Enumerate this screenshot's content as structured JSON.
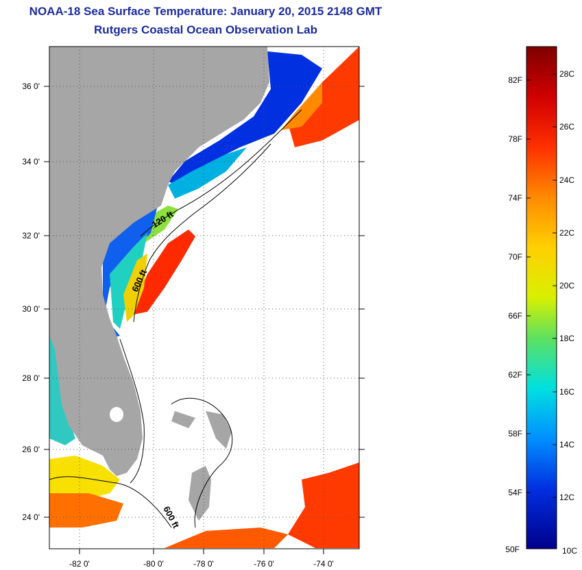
{
  "header": {
    "title": "NOAA-18 Sea Surface Temperature:  January 20, 2015 2148 GMT",
    "subtitle": "Rutgers Coastal Ocean Observation Lab"
  },
  "map": {
    "lon_ticks": [
      "-82 0'",
      "-80 0'",
      "-78 0'",
      "-76 0'",
      "-74 0'"
    ],
    "lat_ticks": [
      "36 0'",
      "34 0'",
      "32 0'",
      "30 0'",
      "28 0'",
      "26 0'",
      "24 0'"
    ],
    "contour_labels": [
      "120 ft",
      "600 ft",
      "600 ft"
    ],
    "colors": {
      "land": "#a6a6a6",
      "ocean_no_data": "#ffffff"
    }
  },
  "colorbar": {
    "fahrenheit_labels": [
      "82F",
      "78F",
      "74F",
      "70F",
      "66F",
      "62F",
      "58F",
      "54F",
      "50F"
    ],
    "celsius_labels": [
      "28C",
      "26C",
      "24C",
      "22C",
      "20C",
      "18C",
      "16C",
      "14C",
      "12C",
      "10C"
    ],
    "gradient": [
      "#7f0000",
      "#e00000",
      "#ff5a00",
      "#ffb000",
      "#ffff00",
      "#6fe04a",
      "#00e0e0",
      "#0088ff",
      "#0020d8",
      "#00008c"
    ]
  }
}
